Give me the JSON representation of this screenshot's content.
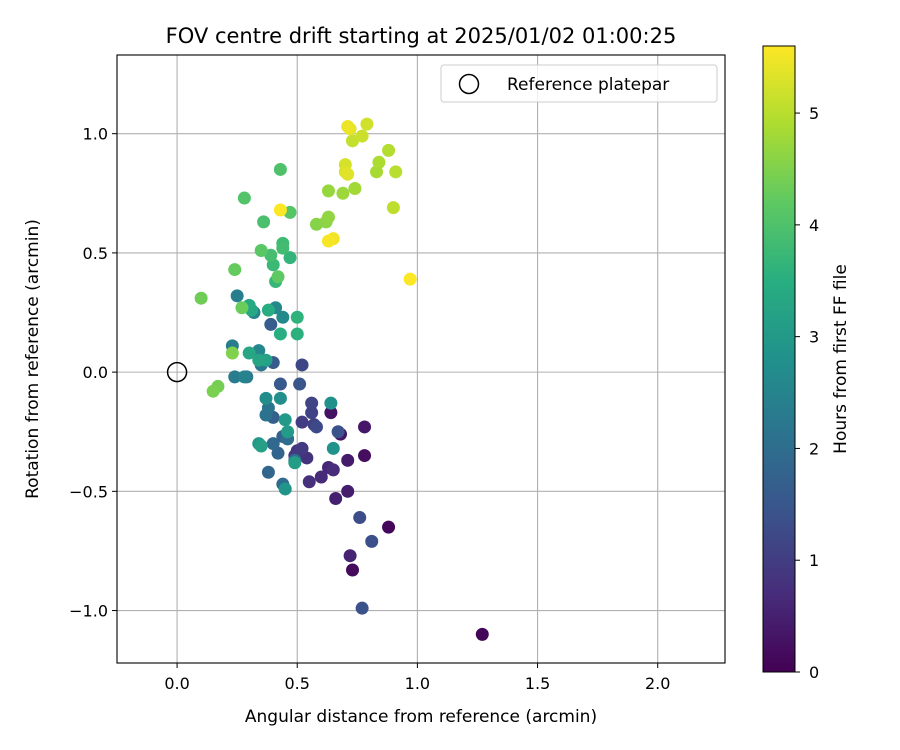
{
  "chart_data": {
    "type": "scatter",
    "title": "FOV centre drift starting at 2025/01/02 01:00:25",
    "xlabel": "Angular distance from reference (arcmin)",
    "ylabel": "Rotation from reference (arcmin)",
    "xlim": [
      -0.25,
      2.28
    ],
    "ylim": [
      -1.22,
      1.33
    ],
    "xticks": [
      "0.0",
      "0.5",
      "1.0",
      "1.5",
      "2.0"
    ],
    "xtick_values": [
      0.0,
      0.5,
      1.0,
      1.5,
      2.0
    ],
    "yticks": [
      "−1.0",
      "−0.5",
      "0.0",
      "0.5",
      "1.0"
    ],
    "ytick_values": [
      -1.0,
      -0.5,
      0.0,
      0.5,
      1.0
    ],
    "grid": true,
    "legend": {
      "placement": "top-right",
      "label": "Reference platepar"
    },
    "reference_point": {
      "x": 0.0,
      "y": 0.0
    },
    "colorbar": {
      "label": "Hours from first FF file",
      "colormap": "viridis",
      "range": [
        0,
        5.6
      ],
      "ticks": [
        "0",
        "1",
        "2",
        "3",
        "4",
        "5"
      ],
      "tick_values": [
        0,
        1,
        2,
        3,
        4,
        5
      ]
    },
    "points": [
      {
        "x": 1.27,
        "y": -1.1,
        "c": 0.05
      },
      {
        "x": 0.88,
        "y": -0.65,
        "c": 0.1
      },
      {
        "x": 0.73,
        "y": -0.83,
        "c": 0.15
      },
      {
        "x": 0.78,
        "y": -0.35,
        "c": 0.2
      },
      {
        "x": 0.64,
        "y": -0.17,
        "c": 0.25
      },
      {
        "x": 0.68,
        "y": -0.26,
        "c": 0.3
      },
      {
        "x": 0.78,
        "y": -0.23,
        "c": 0.35
      },
      {
        "x": 0.71,
        "y": -0.37,
        "c": 0.4
      },
      {
        "x": 0.71,
        "y": -0.5,
        "c": 0.45
      },
      {
        "x": 0.66,
        "y": -0.53,
        "c": 0.5
      },
      {
        "x": 0.72,
        "y": -0.77,
        "c": 0.55
      },
      {
        "x": 0.63,
        "y": -0.4,
        "c": 0.6
      },
      {
        "x": 0.6,
        "y": -0.44,
        "c": 0.65
      },
      {
        "x": 0.65,
        "y": -0.41,
        "c": 0.7
      },
      {
        "x": 0.55,
        "y": -0.46,
        "c": 0.75
      },
      {
        "x": 0.54,
        "y": -0.36,
        "c": 0.8
      },
      {
        "x": 0.5,
        "y": -0.33,
        "c": 0.85
      },
      {
        "x": 0.49,
        "y": -0.35,
        "c": 0.9
      },
      {
        "x": 0.52,
        "y": -0.32,
        "c": 0.95
      },
      {
        "x": 0.52,
        "y": -0.21,
        "c": 1.0
      },
      {
        "x": 0.57,
        "y": -0.22,
        "c": 1.05
      },
      {
        "x": 0.56,
        "y": -0.17,
        "c": 1.1
      },
      {
        "x": 0.56,
        "y": -0.13,
        "c": 1.15
      },
      {
        "x": 0.52,
        "y": 0.03,
        "c": 1.2
      },
      {
        "x": 0.58,
        "y": -0.23,
        "c": 1.25
      },
      {
        "x": 0.76,
        "y": -0.61,
        "c": 1.3
      },
      {
        "x": 0.81,
        "y": -0.71,
        "c": 1.35
      },
      {
        "x": 0.77,
        "y": -0.99,
        "c": 1.4
      },
      {
        "x": 0.67,
        "y": -0.25,
        "c": 1.45
      },
      {
        "x": 0.51,
        "y": -0.05,
        "c": 1.5
      },
      {
        "x": 0.43,
        "y": -0.05,
        "c": 1.55
      },
      {
        "x": 0.4,
        "y": 0.04,
        "c": 1.6
      },
      {
        "x": 0.39,
        "y": 0.2,
        "c": 1.65
      },
      {
        "x": 0.4,
        "y": -0.19,
        "c": 1.7
      },
      {
        "x": 0.44,
        "y": -0.27,
        "c": 1.75
      },
      {
        "x": 0.42,
        "y": -0.34,
        "c": 1.8
      },
      {
        "x": 0.38,
        "y": -0.42,
        "c": 1.85
      },
      {
        "x": 0.4,
        "y": -0.3,
        "c": 1.9
      },
      {
        "x": 0.44,
        "y": -0.47,
        "c": 1.95
      },
      {
        "x": 0.46,
        "y": -0.28,
        "c": 2.0
      },
      {
        "x": 0.49,
        "y": -0.37,
        "c": 2.05
      },
      {
        "x": 0.37,
        "y": -0.18,
        "c": 2.1
      },
      {
        "x": 0.38,
        "y": -0.15,
        "c": 2.15
      },
      {
        "x": 0.35,
        "y": 0.03,
        "c": 2.2
      },
      {
        "x": 0.29,
        "y": -0.02,
        "c": 2.25
      },
      {
        "x": 0.24,
        "y": -0.02,
        "c": 2.3
      },
      {
        "x": 0.23,
        "y": 0.11,
        "c": 2.35
      },
      {
        "x": 0.25,
        "y": 0.32,
        "c": 2.4
      },
      {
        "x": 0.28,
        "y": -0.02,
        "c": 2.45
      },
      {
        "x": 0.32,
        "y": 0.25,
        "c": 2.5
      },
      {
        "x": 0.34,
        "y": 0.09,
        "c": 2.55
      },
      {
        "x": 0.41,
        "y": 0.27,
        "c": 2.6
      },
      {
        "x": 0.44,
        "y": 0.23,
        "c": 2.65
      },
      {
        "x": 0.37,
        "y": -0.11,
        "c": 2.7
      },
      {
        "x": 0.43,
        "y": -0.11,
        "c": 2.75
      },
      {
        "x": 0.64,
        "y": -0.13,
        "c": 2.8
      },
      {
        "x": 0.65,
        "y": -0.32,
        "c": 2.85
      },
      {
        "x": 0.45,
        "y": -0.49,
        "c": 2.9
      },
      {
        "x": 0.34,
        "y": -0.3,
        "c": 2.95
      },
      {
        "x": 0.45,
        "y": -0.2,
        "c": 3.0
      },
      {
        "x": 0.46,
        "y": -0.25,
        "c": 3.05
      },
      {
        "x": 0.49,
        "y": -0.38,
        "c": 3.1
      },
      {
        "x": 0.35,
        "y": -0.31,
        "c": 3.15
      },
      {
        "x": 0.37,
        "y": 0.05,
        "c": 3.2
      },
      {
        "x": 0.34,
        "y": 0.05,
        "c": 3.25
      },
      {
        "x": 0.3,
        "y": 0.08,
        "c": 3.3
      },
      {
        "x": 0.31,
        "y": 0.26,
        "c": 3.35
      },
      {
        "x": 0.3,
        "y": 0.28,
        "c": 3.4
      },
      {
        "x": 0.38,
        "y": 0.26,
        "c": 3.45
      },
      {
        "x": 0.43,
        "y": 0.16,
        "c": 3.5
      },
      {
        "x": 0.5,
        "y": 0.16,
        "c": 3.55
      },
      {
        "x": 0.5,
        "y": 0.23,
        "c": 3.6
      },
      {
        "x": 0.47,
        "y": 0.48,
        "c": 3.65
      },
      {
        "x": 0.41,
        "y": 0.38,
        "c": 3.7
      },
      {
        "x": 0.4,
        "y": 0.45,
        "c": 3.75
      },
      {
        "x": 0.44,
        "y": 0.54,
        "c": 3.8
      },
      {
        "x": 0.44,
        "y": 0.52,
        "c": 3.85
      },
      {
        "x": 0.39,
        "y": 0.49,
        "c": 3.9
      },
      {
        "x": 0.36,
        "y": 0.63,
        "c": 3.95
      },
      {
        "x": 0.43,
        "y": 0.85,
        "c": 4.0
      },
      {
        "x": 0.28,
        "y": 0.73,
        "c": 4.05
      },
      {
        "x": 0.47,
        "y": 0.67,
        "c": 4.1
      },
      {
        "x": 0.35,
        "y": 0.51,
        "c": 4.15
      },
      {
        "x": 0.42,
        "y": 0.4,
        "c": 4.2
      },
      {
        "x": 0.24,
        "y": 0.43,
        "c": 4.25
      },
      {
        "x": 0.27,
        "y": 0.27,
        "c": 4.3
      },
      {
        "x": 0.1,
        "y": 0.31,
        "c": 4.35
      },
      {
        "x": 0.17,
        "y": -0.06,
        "c": 4.4
      },
      {
        "x": 0.15,
        "y": -0.08,
        "c": 4.45
      },
      {
        "x": 0.23,
        "y": 0.08,
        "c": 4.5
      },
      {
        "x": 0.58,
        "y": 0.62,
        "c": 4.55
      },
      {
        "x": 0.62,
        "y": 0.63,
        "c": 4.6
      },
      {
        "x": 0.63,
        "y": 0.65,
        "c": 4.65
      },
      {
        "x": 0.63,
        "y": 0.76,
        "c": 4.7
      },
      {
        "x": 0.69,
        "y": 0.75,
        "c": 4.75
      },
      {
        "x": 0.74,
        "y": 0.77,
        "c": 4.8
      },
      {
        "x": 0.83,
        "y": 0.84,
        "c": 4.85
      },
      {
        "x": 0.84,
        "y": 0.88,
        "c": 4.9
      },
      {
        "x": 0.88,
        "y": 0.93,
        "c": 4.95
      },
      {
        "x": 0.91,
        "y": 0.84,
        "c": 5.0
      },
      {
        "x": 0.9,
        "y": 0.69,
        "c": 5.05
      },
      {
        "x": 0.73,
        "y": 0.97,
        "c": 5.1
      },
      {
        "x": 0.77,
        "y": 0.99,
        "c": 5.15
      },
      {
        "x": 0.79,
        "y": 1.04,
        "c": 5.2
      },
      {
        "x": 0.7,
        "y": 0.87,
        "c": 5.25
      },
      {
        "x": 0.7,
        "y": 0.84,
        "c": 5.3
      },
      {
        "x": 0.71,
        "y": 0.83,
        "c": 5.35
      },
      {
        "x": 0.72,
        "y": 1.02,
        "c": 5.4
      },
      {
        "x": 0.71,
        "y": 1.03,
        "c": 5.45
      },
      {
        "x": 0.65,
        "y": 0.56,
        "c": 5.5
      },
      {
        "x": 0.63,
        "y": 0.55,
        "c": 5.55
      },
      {
        "x": 0.97,
        "y": 0.39,
        "c": 5.58
      },
      {
        "x": 0.43,
        "y": 0.68,
        "c": 5.6
      }
    ]
  }
}
